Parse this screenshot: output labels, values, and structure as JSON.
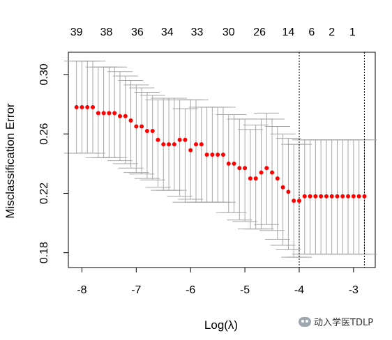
{
  "chart_data": {
    "type": "scatter",
    "title": "",
    "xlabel": "Log(λ)",
    "ylabel": "Misclassification Error",
    "xlim": [
      -8.25,
      -2.6
    ],
    "ylim": [
      0.17,
      0.315
    ],
    "x_ticks": [
      -8,
      -7,
      -6,
      -5,
      -4,
      -3
    ],
    "x_tick_labels": [
      "-8",
      "-7",
      "-6",
      "-5",
      "-4",
      "-3"
    ],
    "y_ticks": [
      0.18,
      0.22,
      0.26,
      0.3
    ],
    "y_tick_labels": [
      "0.18",
      "0.22",
      "0.26",
      "0.30"
    ],
    "top_axis": {
      "ticks": [
        -8.1,
        -7.55,
        -6.98,
        -6.43,
        -5.88,
        -5.3,
        -4.73,
        -4.2,
        -3.77,
        -3.4,
        -3.02
      ],
      "labels": [
        "39",
        "38",
        "36",
        "34",
        "33",
        "30",
        "26",
        "14",
        "6",
        "2",
        "1"
      ]
    },
    "vlines": [
      -4.0,
      -2.8
    ],
    "grid": false,
    "point_color": "#ff0000",
    "errorbar_color": "#a6a6a6",
    "series": [
      {
        "x": [
          -8.1,
          -8.0,
          -7.9,
          -7.8,
          -7.7,
          -7.6,
          -7.5,
          -7.4,
          -7.3,
          -7.2,
          -7.1,
          -7.0,
          -6.9,
          -6.8,
          -6.7,
          -6.6,
          -6.5,
          -6.4,
          -6.3,
          -6.2,
          -6.1,
          -6.0,
          -5.9,
          -5.8,
          -5.7,
          -5.6,
          -5.5,
          -5.4,
          -5.3,
          -5.2,
          -5.1,
          -5.0,
          -4.9,
          -4.8,
          -4.7,
          -4.6,
          -4.5,
          -4.4,
          -4.3,
          -4.2,
          -4.1,
          -4.0,
          -3.9,
          -3.8,
          -3.7,
          -3.6,
          -3.5,
          -3.4,
          -3.3,
          -3.2,
          -3.1,
          -3.0,
          -2.9,
          -2.8
        ],
        "y": [
          0.278,
          0.278,
          0.278,
          0.278,
          0.274,
          0.274,
          0.274,
          0.274,
          0.272,
          0.272,
          0.269,
          0.265,
          0.265,
          0.262,
          0.262,
          0.256,
          0.253,
          0.253,
          0.253,
          0.256,
          0.256,
          0.249,
          0.253,
          0.253,
          0.246,
          0.246,
          0.246,
          0.246,
          0.24,
          0.24,
          0.237,
          0.237,
          0.23,
          0.23,
          0.234,
          0.237,
          0.234,
          0.23,
          0.224,
          0.221,
          0.215,
          0.215,
          0.218,
          0.218,
          0.218,
          0.218,
          0.218,
          0.218,
          0.218,
          0.218,
          0.218,
          0.218,
          0.218,
          0.218
        ],
        "lower": [
          0.247,
          0.247,
          0.247,
          0.247,
          0.244,
          0.244,
          0.244,
          0.244,
          0.242,
          0.24,
          0.237,
          0.234,
          0.233,
          0.23,
          0.229,
          0.224,
          0.222,
          0.222,
          0.222,
          0.218,
          0.214,
          0.216,
          0.214,
          0.214,
          0.214,
          0.214,
          0.214,
          0.214,
          0.207,
          0.207,
          0.202,
          0.201,
          0.196,
          0.196,
          0.196,
          0.199,
          0.195,
          0.189,
          0.185,
          0.182,
          0.177,
          0.177,
          0.179,
          0.179,
          0.179,
          0.179,
          0.179,
          0.179,
          0.179,
          0.179,
          0.179,
          0.179,
          0.179,
          0.179
        ],
        "upper": [
          0.309,
          0.309,
          0.309,
          0.309,
          0.305,
          0.305,
          0.305,
          0.305,
          0.302,
          0.299,
          0.296,
          0.293,
          0.291,
          0.288,
          0.286,
          0.283,
          0.284,
          0.284,
          0.284,
          0.283,
          0.277,
          0.283,
          0.283,
          0.278,
          0.278,
          0.278,
          0.278,
          0.278,
          0.273,
          0.273,
          0.27,
          0.27,
          0.263,
          0.266,
          0.27,
          0.274,
          0.27,
          0.265,
          0.26,
          0.257,
          0.253,
          0.253,
          0.256,
          0.256,
          0.256,
          0.256,
          0.256,
          0.256,
          0.256,
          0.256,
          0.256,
          0.256,
          0.256,
          0.256
        ]
      }
    ]
  },
  "watermark": {
    "text": "动入学医TDLP",
    "icon": "wechat-icon"
  }
}
